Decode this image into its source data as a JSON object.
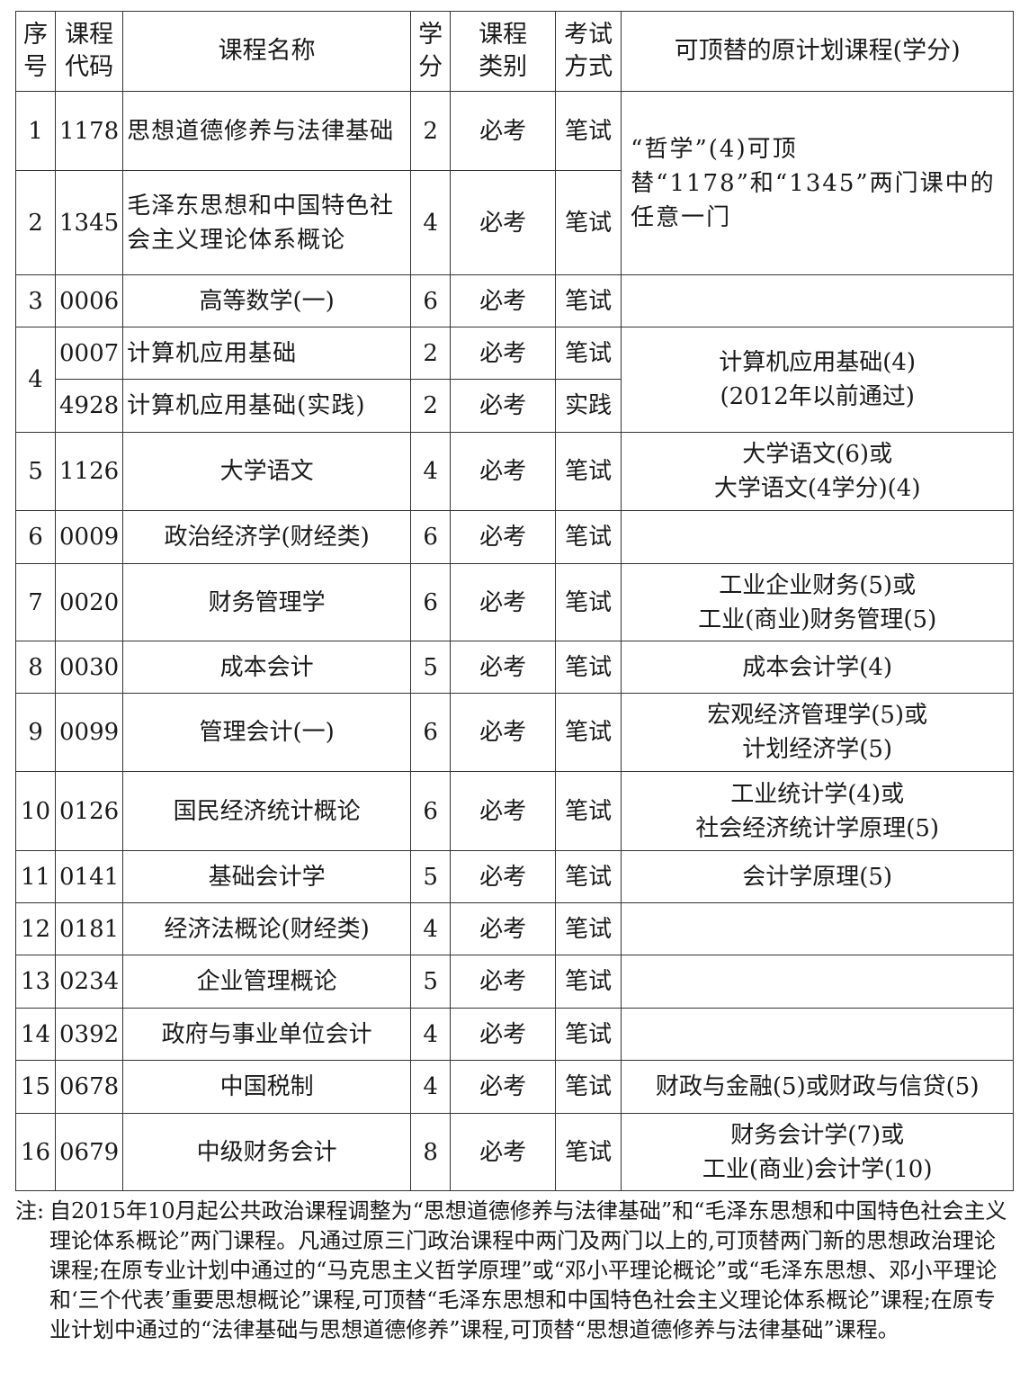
{
  "headers": [
    "序号",
    "课程代码",
    "课程名称",
    "学分",
    "课程类别",
    "考试方式",
    "可顶替的原计划课程(学分)"
  ],
  "rows": [
    {
      "seq": "1",
      "code": "1178",
      "name": "思想道德修养与法律基础",
      "credits": "2",
      "type": "必考",
      "exam": "笔试",
      "substitute": "“哲学”(4)可顶替“1178”和“1345”两门课中的任意一门"
    },
    {
      "seq": "2",
      "code": "1345",
      "name": "毛泽东思想和中国特色社会主义理论体系概论",
      "credits": "4",
      "type": "必考",
      "exam": "笔试"
    },
    {
      "seq": "3",
      "code": "0006",
      "name": "高等数学(一)",
      "credits": "6",
      "type": "必考",
      "exam": "笔试",
      "substitute": ""
    },
    {
      "seq": "4",
      "code": "0007",
      "name": "计算机应用基础",
      "credits": "2",
      "type": "必考",
      "exam": "笔试",
      "substitute": "计算机应用基础(4)\n(2012年以前通过)"
    },
    {
      "code": "4928",
      "name": "计算机应用基础(实践)",
      "credits": "2",
      "type": "必考",
      "exam": "实践"
    },
    {
      "seq": "5",
      "code": "1126",
      "name": "大学语文",
      "credits": "4",
      "type": "必考",
      "exam": "笔试",
      "substitute": "大学语文(6)或\n大学语文(4学分)(4)"
    },
    {
      "seq": "6",
      "code": "0009",
      "name": "政治经济学(财经类)",
      "credits": "6",
      "type": "必考",
      "exam": "笔试",
      "substitute": ""
    },
    {
      "seq": "7",
      "code": "0020",
      "name": "财务管理学",
      "credits": "6",
      "type": "必考",
      "exam": "笔试",
      "substitute": "工业企业财务(5)或\n工业(商业)财务管理(5)"
    },
    {
      "seq": "8",
      "code": "0030",
      "name": "成本会计",
      "credits": "5",
      "type": "必考",
      "exam": "笔试",
      "substitute": "成本会计学(4)"
    },
    {
      "seq": "9",
      "code": "0099",
      "name": "管理会计(一)",
      "credits": "6",
      "type": "必考",
      "exam": "笔试",
      "substitute": "宏观经济管理学(5)或\n计划经济学(5)"
    },
    {
      "seq": "10",
      "code": "0126",
      "name": "国民经济统计概论",
      "credits": "6",
      "type": "必考",
      "exam": "笔试",
      "substitute": "工业统计学(4)或\n社会经济统计学原理(5)"
    },
    {
      "seq": "11",
      "code": "0141",
      "name": "基础会计学",
      "credits": "5",
      "type": "必考",
      "exam": "笔试",
      "substitute": "会计学原理(5)"
    },
    {
      "seq": "12",
      "code": "0181",
      "name": "经济法概论(财经类)",
      "credits": "4",
      "type": "必考",
      "exam": "笔试",
      "substitute": ""
    },
    {
      "seq": "13",
      "code": "0234",
      "name": "企业管理概论",
      "credits": "5",
      "type": "必考",
      "exam": "笔试",
      "substitute": ""
    },
    {
      "seq": "14",
      "code": "0392",
      "name": "政府与事业单位会计",
      "credits": "4",
      "type": "必考",
      "exam": "笔试",
      "substitute": ""
    },
    {
      "seq": "15",
      "code": "0678",
      "name": "中国税制",
      "credits": "4",
      "type": "必考",
      "exam": "笔试",
      "substitute": "财政与金融(5)或财政与信贷(5)"
    },
    {
      "seq": "16",
      "code": "0679",
      "name": "中级财务会计",
      "credits": "8",
      "type": "必考",
      "exam": "笔试",
      "substitute": "财务会计学(7)或\n工业(商业)会计学(10)"
    }
  ],
  "note": {
    "label": "注:",
    "text": "自2015年10月起公共政治课程调整为“思想道德修养与法律基础”和“毛泽东思想和中国特色社会主义理论体系概论”两门课程。凡通过原三门政治课程中两门及两门以上的,可顶替两门新的思想政治理论课程;在原专业计划中通过的“马克思主义哲学原理”或“邓小平理论概论”或“毛泽东思想、邓小平理论和‘三个代表’重要思想概论”课程,可顶替“毛泽东思想和中国特色社会主义理论体系概论”课程;在原专业计划中通过的“法律基础与思想道德修养”课程,可顶替“思想道德修养与法律基础”课程。"
  }
}
